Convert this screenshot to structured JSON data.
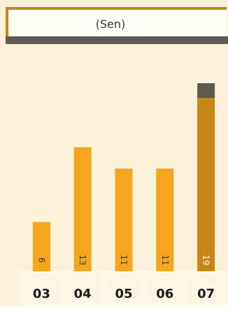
{
  "header": {
    "unit_label": "(Sen)"
  },
  "colors": {
    "background": "#fdf2dc",
    "bar": "#f5a61d",
    "bar_highlight": "#c8861a",
    "bar_cap": "#5e5a52",
    "axis_band": "#fef7e6",
    "axis_text": "#1a1a1a",
    "value_text": "#3a3a3a"
  },
  "chart_data": {
    "type": "bar",
    "categories": [
      "03",
      "04",
      "05",
      "06",
      "07"
    ],
    "values": [
      6,
      13,
      11,
      11,
      19
    ],
    "highlight_index": 4,
    "ylim": [
      0,
      20
    ],
    "title": "",
    "xlabel": "",
    "ylabel": "(Sen)"
  }
}
